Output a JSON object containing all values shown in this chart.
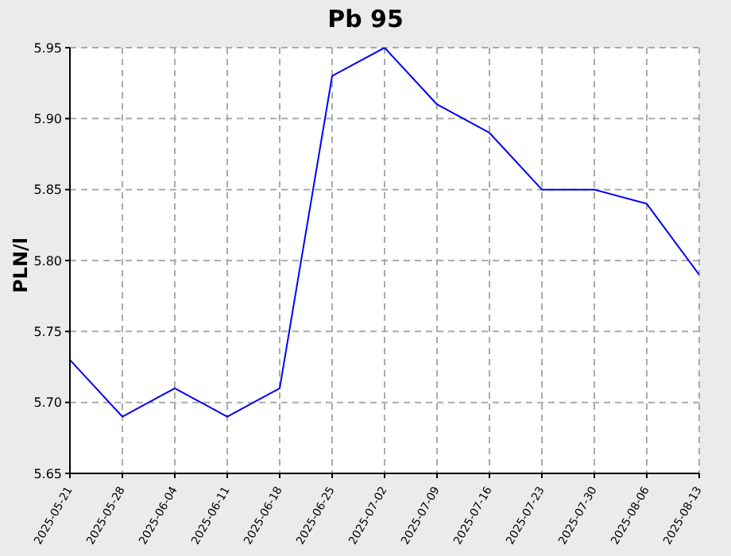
{
  "chart_data": {
    "type": "line",
    "title": "Pb 95",
    "ylabel": "PLN/l",
    "x": [
      "2025-05-21",
      "2025-05-28",
      "2025-06-04",
      "2025-06-11",
      "2025-06-18",
      "2025-06-25",
      "2025-07-02",
      "2025-07-09",
      "2025-07-16",
      "2025-07-23",
      "2025-07-30",
      "2025-08-06",
      "2025-08-13"
    ],
    "series": [
      {
        "color": "#0000ff",
        "values": [
          5.73,
          5.69,
          5.71,
          5.69,
          5.71,
          5.93,
          5.95,
          5.91,
          5.89,
          5.85,
          5.85,
          5.84,
          5.79
        ]
      }
    ],
    "xlim": [
      "2025-05-21",
      "2025-08-13"
    ],
    "xticks": [
      "2025-05-21",
      "2025-05-28",
      "2025-06-04",
      "2025-06-11",
      "2025-06-18",
      "2025-06-25",
      "2025-07-02",
      "2025-07-09",
      "2025-07-16",
      "2025-07-23",
      "2025-07-30",
      "2025-08-06",
      "2025-08-13"
    ],
    "ylim": [
      5.65,
      5.95
    ],
    "yticks": [
      {
        "value": 5.65,
        "label": "5.65"
      },
      {
        "value": 5.7,
        "label": "5.70"
      },
      {
        "value": 5.75,
        "label": "5.75"
      },
      {
        "value": 5.8,
        "label": "5.80"
      },
      {
        "value": 5.85,
        "label": "5.85"
      },
      {
        "value": 5.9,
        "label": "5.90"
      },
      {
        "value": 5.95,
        "label": "5.95"
      }
    ],
    "grid": true,
    "line_style": "solid",
    "marker": "none"
  }
}
